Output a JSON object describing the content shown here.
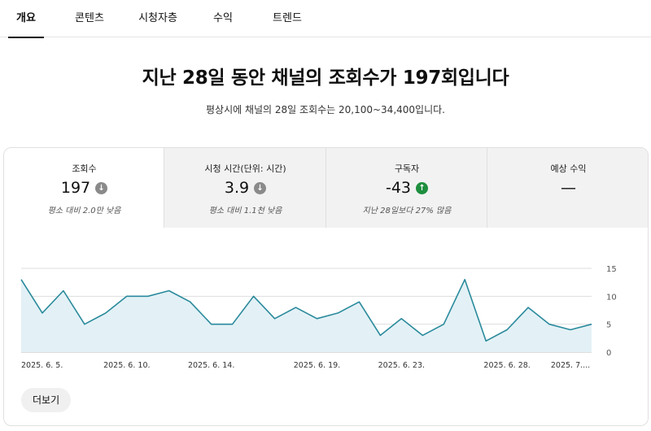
{
  "tabs": [
    {
      "label": "개요",
      "active": true
    },
    {
      "label": "콘텐츠",
      "active": false
    },
    {
      "label": "시청자층",
      "active": false
    },
    {
      "label": "수익",
      "active": false
    },
    {
      "label": "트렌드",
      "active": false
    }
  ],
  "headline": "지난 28일 동안 채널의 조회수가 197회입니다",
  "subline": "평상시에 채널의 28일 조회수는 20,100~34,400입니다.",
  "metrics": [
    {
      "label": "조회수",
      "value": "197",
      "trend_icon": "arrow-down-icon",
      "sub": "평소 대비 2.0만 낮음"
    },
    {
      "label": "시청 시간(단위: 시간)",
      "value": "3.9",
      "trend_icon": "arrow-down-icon",
      "sub": "평소 대비 1.1천 낮음"
    },
    {
      "label": "구독자",
      "value": "-43",
      "trend_icon": "arrow-up-icon",
      "sub": "지난 28일보다 27% 많음"
    },
    {
      "label": "예상 수익",
      "value": "—"
    }
  ],
  "more_button": "더보기",
  "colors": {
    "line": "#2a8a9c",
    "fill": "#e3f1f6",
    "grid": "#dddddd",
    "trend_down": "#8a8a8a",
    "trend_up": "#1e8e3e"
  },
  "chart_data": {
    "type": "area",
    "series": [
      {
        "values": [
          13,
          7,
          11,
          5,
          7,
          10,
          10,
          11,
          9,
          5,
          5,
          10,
          6,
          8,
          6,
          7,
          9,
          3,
          6,
          3,
          5,
          13,
          2,
          4,
          8,
          5,
          4,
          5
        ]
      }
    ],
    "ylim": [
      0,
      15
    ],
    "yticks": [
      "0",
      "5",
      "10",
      "15"
    ],
    "xtick_labels": [
      "2025. 6. 5.",
      "2025. 6. 10.",
      "2025. 6. 14.",
      "2025. 6. 19.",
      "2025. 6. 23.",
      "2025. 6. 28.",
      "2025. 7...."
    ],
    "xtick_indices": [
      0,
      5,
      9,
      14,
      18,
      23,
      26
    ],
    "grid": true
  }
}
